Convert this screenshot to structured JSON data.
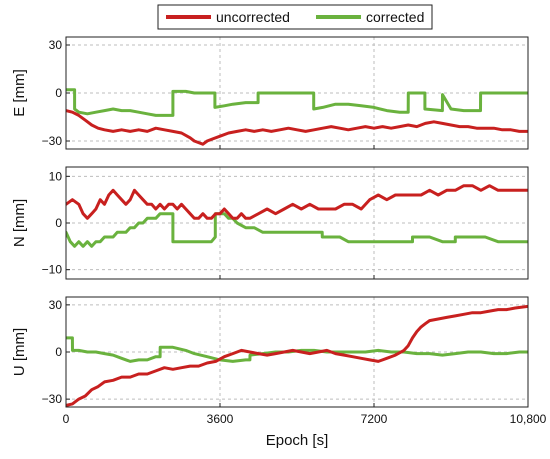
{
  "chart_data": [
    {
      "type": "line",
      "ylabel": "E  [mm]",
      "ylim": [
        -35,
        35
      ],
      "yticks": [
        -30,
        0,
        30
      ],
      "xlim": [
        0,
        10800
      ],
      "xticks": [
        0,
        3600,
        7200,
        10800
      ],
      "xtick_labels": [
        "0",
        "3600",
        "7200",
        "10,800"
      ],
      "show_xticks": false,
      "grid": true,
      "series": [
        {
          "name": "uncorrected",
          "color": "#c8201f",
          "x": [
            0,
            150,
            300,
            450,
            600,
            750,
            900,
            1100,
            1300,
            1500,
            1700,
            1900,
            2100,
            2300,
            2500,
            2700,
            2900,
            3000,
            3100,
            3200,
            3300,
            3400,
            3600,
            3800,
            4000,
            4200,
            4400,
            4600,
            4800,
            5000,
            5200,
            5400,
            5600,
            5800,
            6000,
            6200,
            6400,
            6600,
            6800,
            7000,
            7200,
            7400,
            7600,
            7800,
            8000,
            8200,
            8400,
            8600,
            8800,
            9000,
            9200,
            9400,
            9600,
            9800,
            10000,
            10200,
            10400,
            10600,
            10800
          ],
          "y": [
            -11,
            -12,
            -14,
            -17,
            -20,
            -22,
            -23,
            -24,
            -23,
            -24,
            -23,
            -24,
            -22,
            -23,
            -24,
            -25,
            -28,
            -30,
            -31,
            -32,
            -30,
            -29,
            -27,
            -25,
            -24,
            -23,
            -24,
            -23,
            -24,
            -23,
            -22,
            -23,
            -24,
            -23,
            -22,
            -21,
            -22,
            -23,
            -22,
            -21,
            -22,
            -21,
            -22,
            -21,
            -20,
            -21,
            -19,
            -18,
            -19,
            -20,
            -21,
            -21,
            -22,
            -22,
            -22,
            -23,
            -23,
            -24,
            -24
          ]
        },
        {
          "name": "corrected",
          "color": "#6ab23e",
          "x": [
            0,
            200,
            201,
            300,
            500,
            700,
            900,
            1100,
            1300,
            1500,
            1700,
            1900,
            2100,
            2300,
            2499,
            2500,
            2800,
            3000,
            3200,
            3400,
            3480,
            3481,
            3700,
            3900,
            4200,
            4490,
            4491,
            4800,
            5100,
            5400,
            5790,
            5791,
            6000,
            6300,
            6600,
            6900,
            7200,
            7500,
            7800,
            8000,
            8001,
            8300,
            8390,
            8391,
            8800,
            8801,
            9000,
            9300,
            9690,
            9691,
            10000,
            10400,
            10800
          ],
          "y": [
            2,
            2,
            -10,
            -12,
            -13,
            -12,
            -11,
            -10,
            -11,
            -11,
            -12,
            -13,
            -14,
            -14,
            -14,
            1,
            1,
            0,
            0,
            0,
            0,
            -9,
            -8,
            -7,
            -6,
            -6,
            0,
            0,
            0,
            0,
            0,
            -10,
            -9,
            -7,
            -7,
            -8,
            -9,
            -11,
            -12,
            -12,
            0,
            0,
            0,
            -10,
            -11,
            -1,
            -10,
            -11,
            -11,
            0,
            0,
            0,
            0
          ]
        }
      ]
    },
    {
      "type": "line",
      "ylabel": "N  [mm]",
      "ylim": [
        -12,
        12
      ],
      "yticks": [
        -10,
        0,
        10
      ],
      "xlim": [
        0,
        10800
      ],
      "xticks": [
        0,
        3600,
        7200,
        10800
      ],
      "xtick_labels": [
        "0",
        "3600",
        "7200",
        "10,800"
      ],
      "show_xticks": false,
      "grid": true,
      "series": [
        {
          "name": "uncorrected",
          "color": "#c8201f",
          "x": [
            0,
            150,
            300,
            400,
            500,
            600,
            700,
            800,
            900,
            1000,
            1100,
            1200,
            1300,
            1400,
            1500,
            1600,
            1700,
            1800,
            1900,
            2000,
            2100,
            2200,
            2300,
            2400,
            2500,
            2600,
            2700,
            2800,
            2900,
            3000,
            3100,
            3200,
            3300,
            3400,
            3500,
            3600,
            3700,
            3800,
            3900,
            4000,
            4100,
            4200,
            4300,
            4500,
            4700,
            4900,
            5100,
            5300,
            5500,
            5700,
            5900,
            6100,
            6300,
            6500,
            6700,
            6900,
            7100,
            7300,
            7500,
            7700,
            7900,
            8100,
            8300,
            8500,
            8700,
            8900,
            9100,
            9300,
            9500,
            9700,
            9900,
            10100,
            10300,
            10500,
            10800
          ],
          "y": [
            4,
            5,
            4,
            2,
            1,
            2,
            3,
            5,
            4,
            6,
            7,
            6,
            5,
            4,
            5,
            7,
            6,
            5,
            4,
            4,
            3,
            4,
            3,
            4,
            4,
            3,
            4,
            3,
            2,
            1,
            1,
            2,
            1,
            1,
            2,
            2,
            3,
            2,
            1,
            1,
            2,
            1,
            1,
            2,
            3,
            2,
            3,
            4,
            3,
            4,
            3,
            3,
            3,
            4,
            4,
            3,
            5,
            6,
            5,
            6,
            6,
            6,
            6,
            7,
            6,
            7,
            7,
            8,
            8,
            7,
            8,
            7,
            7,
            7,
            7
          ]
        },
        {
          "name": "corrected",
          "color": "#6ab23e",
          "x": [
            0,
            100,
            200,
            300,
            400,
            500,
            600,
            700,
            800,
            900,
            1000,
            1100,
            1200,
            1300,
            1400,
            1500,
            1600,
            1700,
            1800,
            1900,
            2000,
            2100,
            2200,
            2300,
            2400,
            2499,
            2500,
            2700,
            2900,
            3100,
            3300,
            3400,
            3490,
            3491,
            3600,
            3700,
            3800,
            3900,
            4000,
            4200,
            4400,
            4600,
            4800,
            5000,
            5200,
            5400,
            5600,
            5800,
            5990,
            5991,
            6200,
            6400,
            6600,
            6800,
            7000,
            7200,
            7400,
            7600,
            7800,
            8000,
            8100,
            8101,
            8500,
            8800,
            9000,
            9100,
            9101,
            9500,
            9800,
            10100,
            10400,
            10800
          ],
          "y": [
            -2,
            -4,
            -5,
            -4,
            -5,
            -4,
            -5,
            -4,
            -4,
            -3,
            -3,
            -3,
            -2,
            -2,
            -2,
            -1,
            -1,
            0,
            0,
            1,
            1,
            1,
            2,
            2,
            2,
            2,
            -4,
            -4,
            -4,
            -4,
            -4,
            -4,
            -3,
            2,
            2,
            2,
            1,
            1,
            0,
            -1,
            -1,
            -2,
            -2,
            -2,
            -2,
            -2,
            -2,
            -2,
            -2,
            -3,
            -3,
            -3,
            -4,
            -4,
            -4,
            -4,
            -4,
            -4,
            -4,
            -4,
            -4,
            -3,
            -3,
            -4,
            -4,
            -4,
            -3,
            -3,
            -3,
            -4,
            -4,
            -4
          ]
        }
      ]
    },
    {
      "type": "line",
      "ylabel": "U  [mm]",
      "ylim": [
        -35,
        35
      ],
      "yticks": [
        -30,
        0,
        30
      ],
      "xlim": [
        0,
        10800
      ],
      "xticks": [
        0,
        3600,
        7200,
        10800
      ],
      "xtick_labels": [
        "0",
        "3600",
        "7200",
        "10,800"
      ],
      "show_xticks": true,
      "xlabel": "Epoch  [s]",
      "grid": true,
      "series": [
        {
          "name": "uncorrected",
          "color": "#c8201f",
          "x": [
            0,
            150,
            300,
            450,
            600,
            750,
            900,
            1100,
            1300,
            1500,
            1700,
            1900,
            2100,
            2300,
            2500,
            2700,
            2900,
            3100,
            3300,
            3500,
            3700,
            3900,
            4100,
            4300,
            4500,
            4700,
            4900,
            5100,
            5300,
            5500,
            5700,
            5900,
            6100,
            6300,
            6500,
            6700,
            6900,
            7100,
            7300,
            7500,
            7700,
            7900,
            8000,
            8100,
            8200,
            8300,
            8400,
            8500,
            8700,
            8900,
            9100,
            9300,
            9500,
            9700,
            9900,
            10100,
            10300,
            10500,
            10800
          ],
          "y": [
            -34,
            -33,
            -30,
            -28,
            -24,
            -22,
            -19,
            -18,
            -16,
            -16,
            -14,
            -14,
            -12,
            -10,
            -11,
            -10,
            -9,
            -9,
            -7,
            -6,
            -3,
            -1,
            1,
            0,
            -1,
            -2,
            -1,
            0,
            1,
            0,
            -1,
            0,
            1,
            -1,
            -2,
            -3,
            -4,
            -5,
            -6,
            -4,
            -2,
            1,
            4,
            9,
            13,
            16,
            18,
            20,
            21,
            22,
            23,
            24,
            25,
            25,
            26,
            27,
            27,
            28,
            29
          ]
        },
        {
          "name": "corrected",
          "color": "#6ab23e",
          "x": [
            0,
            150,
            151,
            300,
            500,
            700,
            900,
            1100,
            1300,
            1500,
            1700,
            1900,
            2100,
            2200,
            2201,
            2500,
            2800,
            3000,
            3300,
            3600,
            3900,
            4200,
            4300,
            4301,
            4600,
            4900,
            5200,
            5500,
            5800,
            6100,
            6400,
            6700,
            7000,
            7300,
            7600,
            7900,
            8200,
            8500,
            8800,
            9100,
            9400,
            9700,
            10000,
            10300,
            10600,
            10800
          ],
          "y": [
            9,
            9,
            1,
            1,
            0,
            0,
            -1,
            -2,
            -4,
            -6,
            -5,
            -5,
            -3,
            -3,
            3,
            3,
            1,
            -1,
            -3,
            -5,
            -6,
            -5,
            -5,
            -2,
            -1,
            0,
            0,
            1,
            1,
            0,
            0,
            0,
            0,
            1,
            0,
            0,
            -1,
            -1,
            -2,
            -1,
            0,
            0,
            -1,
            -1,
            0,
            0
          ]
        }
      ]
    }
  ],
  "legend": {
    "placement": "top-center",
    "items": [
      {
        "name": "uncorrected",
        "color": "#c8201f"
      },
      {
        "name": "corrected",
        "color": "#6ab23e"
      }
    ]
  }
}
